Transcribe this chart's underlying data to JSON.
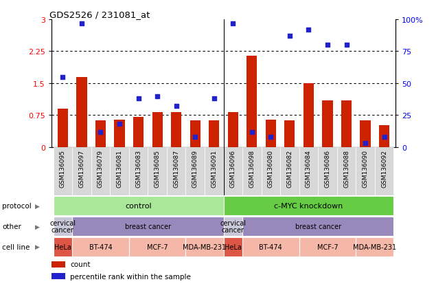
{
  "title": "GDS2526 / 231081_at",
  "samples": [
    "GSM136095",
    "GSM136097",
    "GSM136079",
    "GSM136081",
    "GSM136083",
    "GSM136085",
    "GSM136087",
    "GSM136089",
    "GSM136091",
    "GSM136096",
    "GSM136098",
    "GSM136080",
    "GSM136082",
    "GSM136084",
    "GSM136086",
    "GSM136088",
    "GSM136090",
    "GSM136092"
  ],
  "count_values": [
    0.9,
    1.65,
    0.62,
    0.65,
    0.7,
    0.82,
    0.82,
    0.62,
    0.62,
    0.82,
    2.15,
    0.65,
    0.62,
    1.5,
    1.1,
    1.1,
    0.62,
    0.52
  ],
  "percentile_values": [
    55,
    97,
    12,
    18,
    38,
    40,
    32,
    8,
    38,
    97,
    12,
    8,
    87,
    92,
    80,
    80,
    3,
    8
  ],
  "bar_color": "#cc2200",
  "dot_color": "#2222cc",
  "ylim_left": [
    0,
    3
  ],
  "ylim_right": [
    0,
    100
  ],
  "yticks_left": [
    0,
    0.75,
    1.5,
    2.25,
    3
  ],
  "yticks_right": [
    0,
    25,
    50,
    75,
    100
  ],
  "ytick_labels_left": [
    "0",
    "0.75",
    "1.5",
    "2.25",
    "3"
  ],
  "ytick_labels_right": [
    "0",
    "25",
    "50",
    "75",
    "100%"
  ],
  "hlines": [
    0.75,
    1.5,
    2.25
  ],
  "group_divider": 8.5,
  "protocol_groups": [
    {
      "label": "control",
      "start": 0,
      "end": 9,
      "color": "#aae899"
    },
    {
      "label": "c-MYC knockdown",
      "start": 9,
      "end": 18,
      "color": "#66cc44"
    }
  ],
  "other_groups": [
    {
      "label": "cervical\ncancer",
      "start": 0,
      "end": 1,
      "color": "#c8c8d8"
    },
    {
      "label": "breast cancer",
      "start": 1,
      "end": 9,
      "color": "#9988bb"
    },
    {
      "label": "cervical\ncancer",
      "start": 9,
      "end": 10,
      "color": "#c8c8d8"
    },
    {
      "label": "breast cancer",
      "start": 10,
      "end": 18,
      "color": "#9988bb"
    }
  ],
  "cell_line_groups": [
    {
      "label": "HeLa",
      "start": 0,
      "end": 1,
      "color": "#dd5544"
    },
    {
      "label": "BT-474",
      "start": 1,
      "end": 4,
      "color": "#f5b8a8"
    },
    {
      "label": "MCF-7",
      "start": 4,
      "end": 7,
      "color": "#f5b8a8"
    },
    {
      "label": "MDA-MB-231",
      "start": 7,
      "end": 9,
      "color": "#f5b8a8"
    },
    {
      "label": "HeLa",
      "start": 9,
      "end": 10,
      "color": "#dd5544"
    },
    {
      "label": "BT-474",
      "start": 10,
      "end": 13,
      "color": "#f5b8a8"
    },
    {
      "label": "MCF-7",
      "start": 13,
      "end": 16,
      "color": "#f5b8a8"
    },
    {
      "label": "MDA-MB-231",
      "start": 16,
      "end": 18,
      "color": "#f5b8a8"
    }
  ],
  "row_labels": [
    "protocol",
    "other",
    "cell line"
  ],
  "legend_items": [
    {
      "label": "count",
      "color": "#cc2200"
    },
    {
      "label": "percentile rank within the sample",
      "color": "#2222cc"
    }
  ],
  "bar_width": 0.55,
  "xticklabel_bg": "#d8d8d8"
}
